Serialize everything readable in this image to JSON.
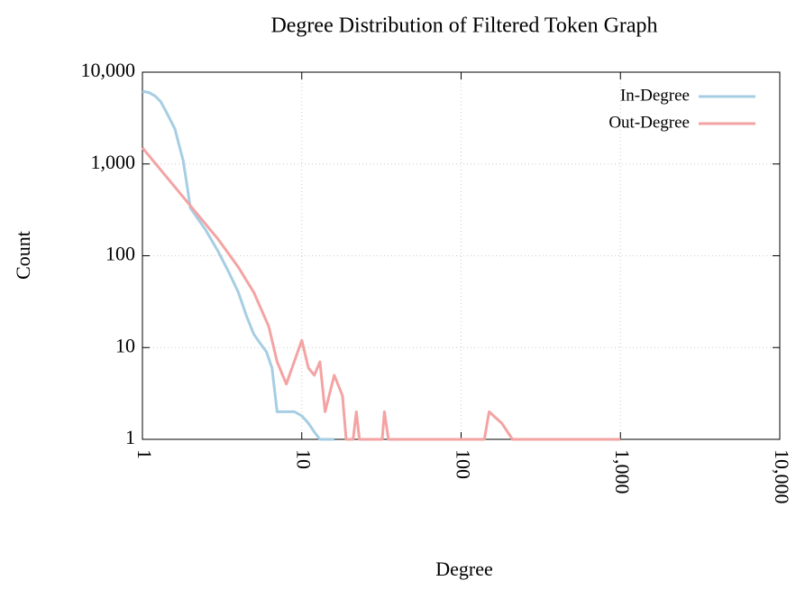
{
  "chart_data": {
    "type": "line",
    "title": "Degree Distribution of Filtered Token Graph",
    "xlabel": "Degree",
    "ylabel": "Count",
    "xscale": "log",
    "yscale": "log",
    "xlim": [
      1,
      10000
    ],
    "ylim": [
      1,
      10000
    ],
    "xticks": [
      1,
      10,
      100,
      {
        "value": 1000,
        "label": "1,000"
      },
      {
        "value": 10000,
        "label": "10,000"
      }
    ],
    "yticks": [
      1,
      10,
      100,
      {
        "value": 1000,
        "label": "1,000"
      },
      {
        "value": 10000,
        "label": "10,000"
      }
    ],
    "grid": true,
    "legend": "upper right",
    "series": [
      {
        "name": "In-Degree",
        "color": "#a6cee3",
        "x": [
          1,
          1.1,
          1.2,
          1.3,
          1.4,
          1.5,
          1.6,
          1.7,
          1.8,
          1.9,
          2,
          2.5,
          3,
          3.5,
          4,
          4.5,
          5,
          5.5,
          6,
          6.5,
          7,
          8,
          9,
          10,
          11,
          12,
          13,
          14,
          15,
          16
        ],
        "values": [
          6200,
          6000,
          5500,
          4800,
          3800,
          3000,
          2400,
          1600,
          1100,
          600,
          330,
          190,
          110,
          65,
          40,
          22,
          14,
          11,
          9,
          6,
          2,
          2,
          2,
          1.8,
          1.5,
          1.2,
          1,
          1,
          1,
          1
        ]
      },
      {
        "name": "Out-Degree",
        "color": "#f4a3a3",
        "x": [
          1,
          2,
          3,
          4,
          5,
          6.2,
          7,
          8,
          10,
          11,
          12,
          13,
          14,
          16,
          18,
          19,
          21,
          22,
          23,
          32,
          33,
          35,
          140,
          150,
          160,
          180,
          210,
          1000
        ],
        "values": [
          1500,
          350,
          150,
          75,
          40,
          17,
          7,
          4,
          12,
          6,
          5,
          7,
          2,
          5,
          3,
          1,
          1,
          2,
          1,
          1,
          2,
          1,
          1,
          2,
          1.8,
          1.5,
          1,
          1
        ]
      }
    ]
  }
}
